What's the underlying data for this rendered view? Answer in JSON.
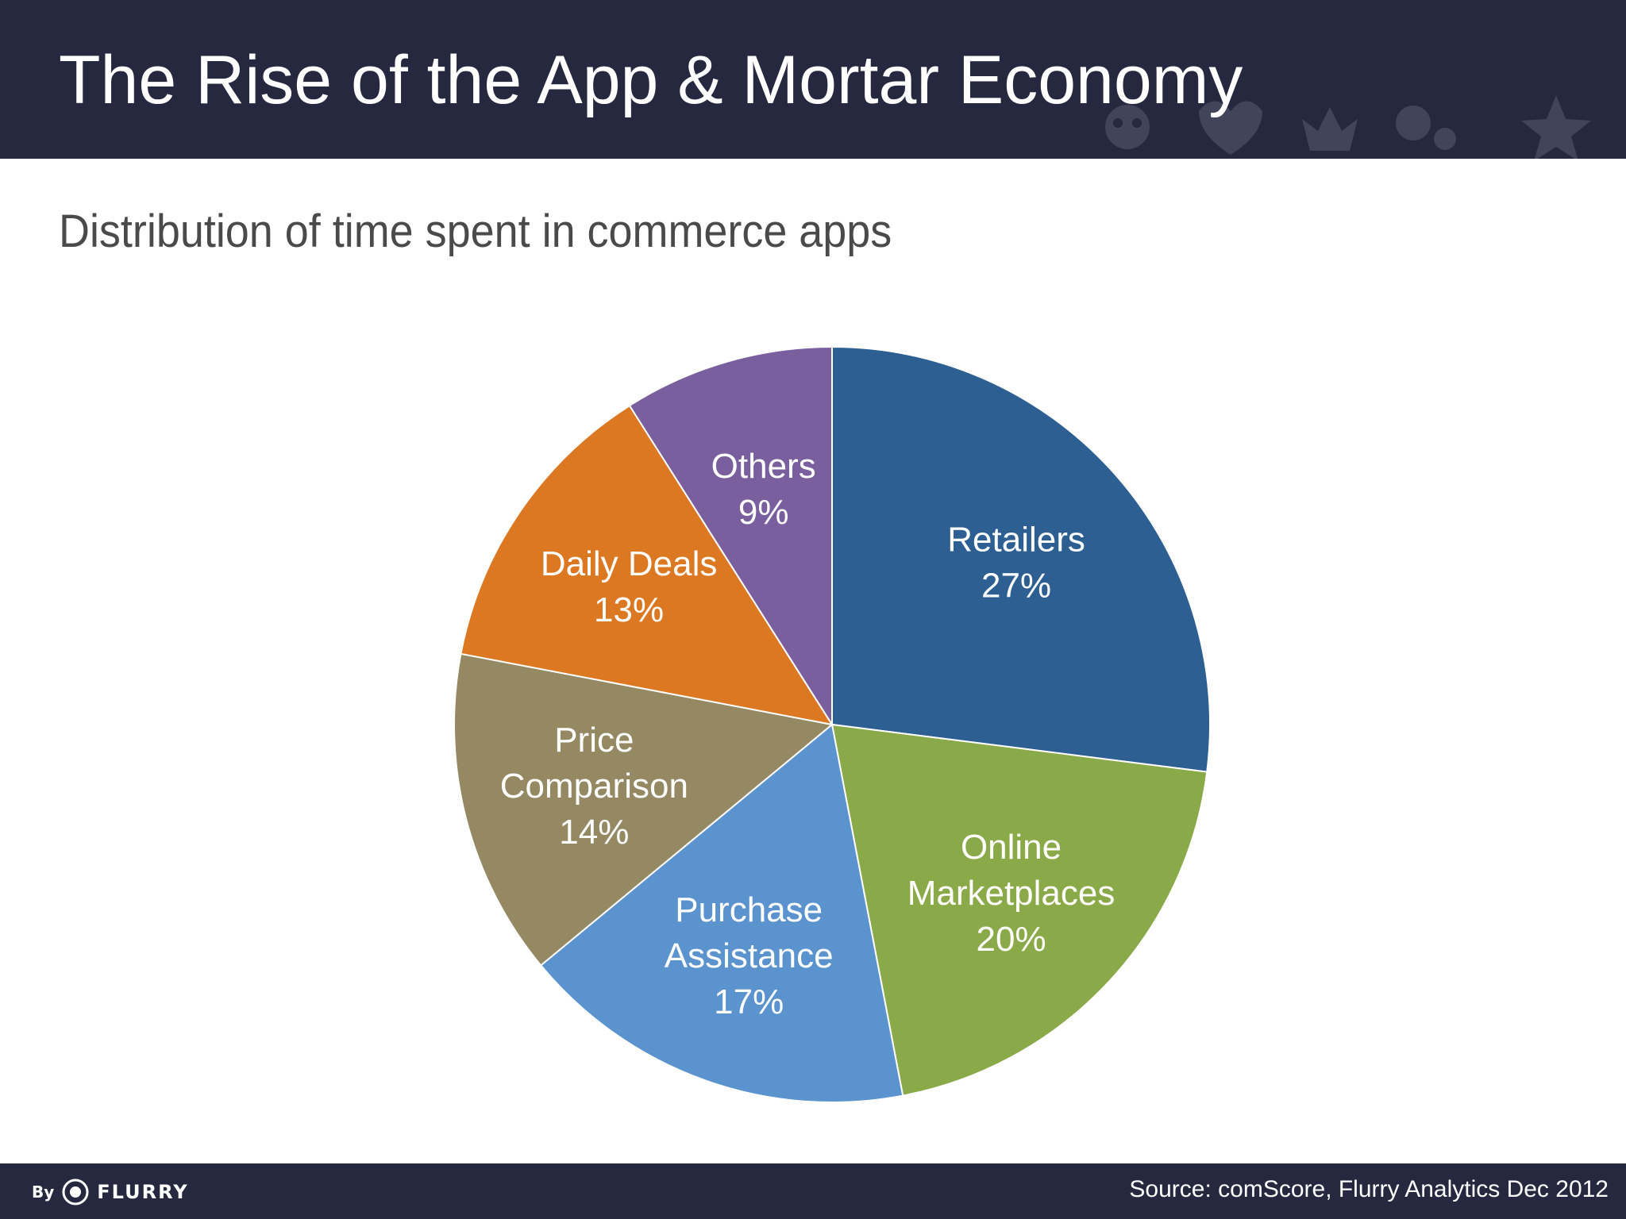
{
  "header": {
    "title": "The Rise of the App & Mortar Economy"
  },
  "subtitle": "Distribution of time spent in commerce apps",
  "chart_data": {
    "type": "pie",
    "title": "Distribution of time spent in commerce apps",
    "slices": [
      {
        "label": [
          "Retailers"
        ],
        "value": 27,
        "value_label": "27%",
        "color": "#2d5f93"
      },
      {
        "label": [
          "Online",
          "Marketplaces"
        ],
        "value": 20,
        "value_label": "20%",
        "color": "#8aa948"
      },
      {
        "label": [
          "Purchase",
          "Assistance"
        ],
        "value": 17,
        "value_label": "17%",
        "color": "#5b93ce"
      },
      {
        "label": [
          "Price",
          "Comparison"
        ],
        "value": 14,
        "value_label": "14%",
        "color": "#958964"
      },
      {
        "label": [
          "Daily Deals"
        ],
        "value": 13,
        "value_label": "13%",
        "color": "#dc7722"
      },
      {
        "label": [
          "Others"
        ],
        "value": 9,
        "value_label": "9%",
        "color": "#7a5f9f"
      }
    ]
  },
  "footer": {
    "brand_prefix": "By",
    "brand_name": "FLURRY",
    "source": "Source: comScore, Flurry Analytics Dec 2012"
  }
}
